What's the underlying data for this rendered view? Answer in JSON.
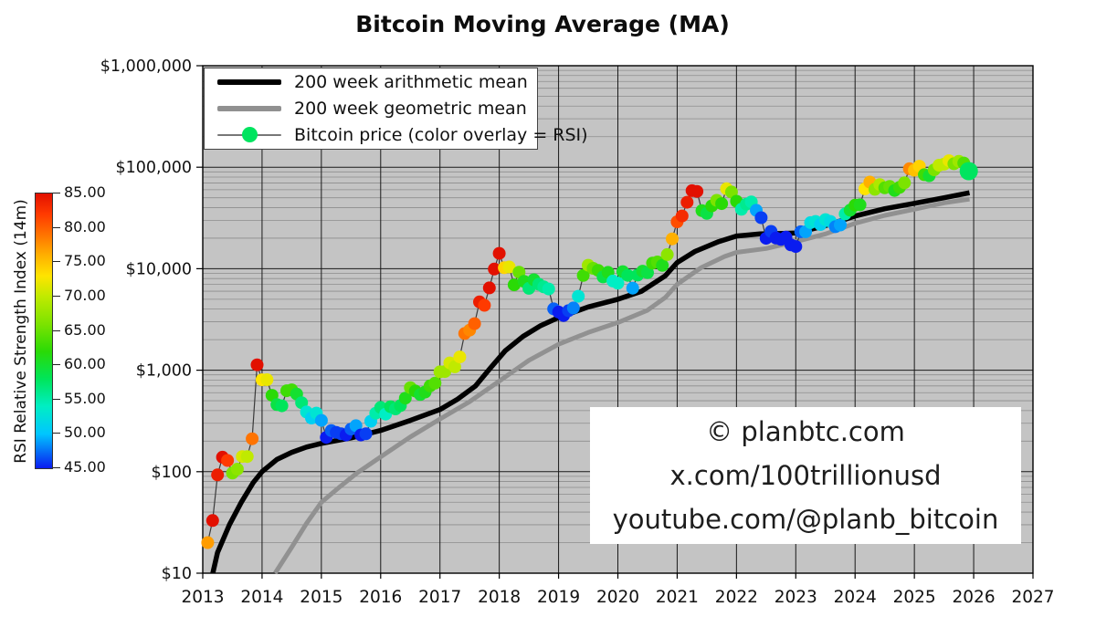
{
  "title": "Bitcoin Moving Average (MA)",
  "watermark": {
    "lines": [
      "© planbtc.com",
      "x.com/100trillionusd",
      "youtube.com/@planb_bitcoin"
    ]
  },
  "legend": {
    "items": [
      {
        "label": "200 week arithmetic mean",
        "type": "thick-line",
        "color": "#000000"
      },
      {
        "label": "200 week geometric mean",
        "type": "thick-line",
        "color": "#909090"
      },
      {
        "label": "Bitcoin price (color overlay = RSI)",
        "type": "marker",
        "color": "#00e45f"
      }
    ]
  },
  "colorbar": {
    "label": "RSI Relative Strength Index (14m)",
    "tick_labels": [
      "85.00",
      "80.00",
      "75.00",
      "70.00",
      "65.00",
      "60.00",
      "55.00",
      "50.00",
      "45.00"
    ],
    "min": 45,
    "max": 85,
    "stops": [
      [
        45,
        "#0a1cf0"
      ],
      [
        50,
        "#00c6ff"
      ],
      [
        54,
        "#00eec4"
      ],
      [
        58,
        "#00e55a"
      ],
      [
        62,
        "#2ada06"
      ],
      [
        66,
        "#7ce300"
      ],
      [
        70,
        "#c0ea00"
      ],
      [
        73,
        "#ffe400"
      ],
      [
        76,
        "#ffb000"
      ],
      [
        79,
        "#ff7300"
      ],
      [
        82,
        "#ff3a00"
      ],
      [
        85,
        "#e21000"
      ]
    ]
  },
  "colors": {
    "figure_bg": "#ffffff",
    "plot_bg": "#c4c4c4",
    "grid_minor": "#8d8d8d",
    "grid_major": "#1a1a1a",
    "frame": "#000000",
    "arith_line": "#000000",
    "geo_line": "#919191",
    "connector": "#3a3a3a",
    "tick_text": "#111111"
  },
  "chart_data": {
    "type": "line+scatter",
    "title": "Bitcoin Moving Average (MA)",
    "y_scale": "log",
    "x_range": [
      2013,
      2027
    ],
    "y_range": [
      10,
      1000000
    ],
    "grid": true,
    "legend_position": "upper-left",
    "x_tick_labels": [
      "2013",
      "2014",
      "2015",
      "2016",
      "2017",
      "2018",
      "2019",
      "2020",
      "2021",
      "2022",
      "2023",
      "2024",
      "2025",
      "2026",
      "2027"
    ],
    "y_ticks": [
      {
        "label": "$1,000,000",
        "value": 1000000
      },
      {
        "label": "$100,000",
        "value": 100000
      },
      {
        "label": "$10,000",
        "value": 10000
      },
      {
        "label": "$1,000",
        "value": 1000
      },
      {
        "label": "$100",
        "value": 100
      },
      {
        "label": "$10",
        "value": 10
      }
    ],
    "rsi_color_range": [
      45,
      85
    ],
    "series": [
      {
        "name": "200 week arithmetic mean",
        "style": "thick-line",
        "color": "#000000",
        "points": [
          [
            2013.17,
            10
          ],
          [
            2013.25,
            16
          ],
          [
            2013.45,
            30
          ],
          [
            2013.65,
            50
          ],
          [
            2013.85,
            78
          ],
          [
            2014.0,
            100
          ],
          [
            2014.25,
            132
          ],
          [
            2014.5,
            155
          ],
          [
            2014.75,
            175
          ],
          [
            2015.0,
            190
          ],
          [
            2015.5,
            215
          ],
          [
            2016.0,
            255
          ],
          [
            2016.5,
            320
          ],
          [
            2017.0,
            410
          ],
          [
            2017.3,
            520
          ],
          [
            2017.6,
            700
          ],
          [
            2017.85,
            1050
          ],
          [
            2018.1,
            1550
          ],
          [
            2018.4,
            2150
          ],
          [
            2018.7,
            2750
          ],
          [
            2019.0,
            3300
          ],
          [
            2019.5,
            4200
          ],
          [
            2020.0,
            5000
          ],
          [
            2020.4,
            6000
          ],
          [
            2020.8,
            8500
          ],
          [
            2021.0,
            11500
          ],
          [
            2021.3,
            14800
          ],
          [
            2021.7,
            18500
          ],
          [
            2022.0,
            21000
          ],
          [
            2022.4,
            22000
          ],
          [
            2022.8,
            22300
          ],
          [
            2023.0,
            22500
          ],
          [
            2023.5,
            26500
          ],
          [
            2024.0,
            33000
          ],
          [
            2024.5,
            39000
          ],
          [
            2025.0,
            44000
          ],
          [
            2025.5,
            50000
          ],
          [
            2025.93,
            56000
          ]
        ]
      },
      {
        "name": "200 week geometric mean",
        "style": "thick-line",
        "color": "#919191",
        "points": [
          [
            2014.22,
            10
          ],
          [
            2014.5,
            18
          ],
          [
            2014.75,
            31
          ],
          [
            2015.0,
            50
          ],
          [
            2015.3,
            70
          ],
          [
            2015.6,
            97
          ],
          [
            2016.0,
            140
          ],
          [
            2016.5,
            220
          ],
          [
            2017.0,
            330
          ],
          [
            2017.5,
            490
          ],
          [
            2018.0,
            780
          ],
          [
            2018.5,
            1250
          ],
          [
            2019.0,
            1800
          ],
          [
            2019.5,
            2350
          ],
          [
            2020.0,
            2950
          ],
          [
            2020.5,
            3900
          ],
          [
            2020.8,
            5200
          ],
          [
            2021.0,
            7000
          ],
          [
            2021.4,
            10200
          ],
          [
            2021.8,
            13200
          ],
          [
            2022.0,
            14500
          ],
          [
            2022.5,
            15800
          ],
          [
            2023.0,
            18500
          ],
          [
            2023.5,
            22000
          ],
          [
            2024.0,
            28000
          ],
          [
            2024.5,
            33500
          ],
          [
            2025.0,
            38500
          ],
          [
            2025.5,
            44500
          ],
          [
            2025.93,
            48500
          ]
        ]
      },
      {
        "name": "Bitcoin price (color overlay = RSI)",
        "style": "scatter-rsi",
        "note": "monthly close, dot color = 14-month RSI",
        "last_point_highlight": true,
        "monthly": [
          [
            "2013-01",
            20,
            77
          ],
          [
            "2013-02",
            33,
            85
          ],
          [
            "2013-03",
            93,
            84
          ],
          [
            "2013-04",
            139,
            85
          ],
          [
            "2013-05",
            129,
            82
          ],
          [
            "2013-06",
            97,
            66
          ],
          [
            "2013-07",
            106,
            67
          ],
          [
            "2013-08",
            141,
            71
          ],
          [
            "2013-09",
            141,
            70
          ],
          [
            "2013-10",
            211,
            79
          ],
          [
            "2013-11",
            1130,
            87
          ],
          [
            "2013-12",
            805,
            73
          ],
          [
            "2014-01",
            806,
            72
          ],
          [
            "2014-02",
            566,
            62
          ],
          [
            "2014-03",
            458,
            59
          ],
          [
            "2014-04",
            446,
            58
          ],
          [
            "2014-05",
            628,
            63
          ],
          [
            "2014-06",
            641,
            63
          ],
          [
            "2014-07",
            583,
            60
          ],
          [
            "2014-08",
            478,
            57
          ],
          [
            "2014-09",
            387,
            53
          ],
          [
            "2014-10",
            338,
            51
          ],
          [
            "2014-11",
            378,
            53
          ],
          [
            "2014-12",
            320,
            49
          ],
          [
            "2015-01",
            218,
            45
          ],
          [
            "2015-02",
            254,
            47
          ],
          [
            "2015-03",
            244,
            46
          ],
          [
            "2015-04",
            236,
            46
          ],
          [
            "2015-05",
            230,
            45
          ],
          [
            "2015-06",
            263,
            47
          ],
          [
            "2015-07",
            284,
            49
          ],
          [
            "2015-08",
            230,
            45
          ],
          [
            "2015-09",
            236,
            46
          ],
          [
            "2015-10",
            314,
            51
          ],
          [
            "2015-11",
            377,
            55
          ],
          [
            "2015-12",
            430,
            57
          ],
          [
            "2016-01",
            369,
            54
          ],
          [
            "2016-02",
            437,
            58
          ],
          [
            "2016-03",
            416,
            57
          ],
          [
            "2016-04",
            448,
            58
          ],
          [
            "2016-05",
            531,
            61
          ],
          [
            "2016-06",
            673,
            65
          ],
          [
            "2016-07",
            624,
            62
          ],
          [
            "2016-08",
            575,
            60
          ],
          [
            "2016-09",
            610,
            61
          ],
          [
            "2016-10",
            700,
            63
          ],
          [
            "2016-11",
            745,
            64
          ],
          [
            "2016-12",
            964,
            68
          ],
          [
            "2017-01",
            970,
            68
          ],
          [
            "2017-02",
            1180,
            71
          ],
          [
            "2017-03",
            1080,
            70
          ],
          [
            "2017-04",
            1350,
            72
          ],
          [
            "2017-05",
            2300,
            79
          ],
          [
            "2017-06",
            2480,
            78
          ],
          [
            "2017-07",
            2875,
            80
          ],
          [
            "2017-08",
            4703,
            84
          ],
          [
            "2017-09",
            4360,
            82
          ],
          [
            "2017-10",
            6468,
            85
          ],
          [
            "2017-11",
            9916,
            86
          ],
          [
            "2017-12",
            14156,
            88
          ],
          [
            "2018-01",
            10221,
            74
          ],
          [
            "2018-02",
            10397,
            72
          ],
          [
            "2018-03",
            6938,
            62
          ],
          [
            "2018-04",
            9240,
            65
          ],
          [
            "2018-05",
            7494,
            61
          ],
          [
            "2018-06",
            6404,
            57
          ],
          [
            "2018-07",
            7780,
            60
          ],
          [
            "2018-08",
            7037,
            57
          ],
          [
            "2018-09",
            6625,
            56
          ],
          [
            "2018-10",
            6317,
            55
          ],
          [
            "2018-11",
            4017,
            47
          ],
          [
            "2018-12",
            3742,
            45
          ],
          [
            "2019-01",
            3457,
            44
          ],
          [
            "2019-02",
            3854,
            46
          ],
          [
            "2019-03",
            4105,
            48
          ],
          [
            "2019-04",
            5350,
            53
          ],
          [
            "2019-05",
            8574,
            63
          ],
          [
            "2019-06",
            10817,
            68
          ],
          [
            "2019-07",
            10085,
            65
          ],
          [
            "2019-08",
            9630,
            63
          ],
          [
            "2019-09",
            8308,
            59
          ],
          [
            "2019-10",
            9199,
            61
          ],
          [
            "2019-11",
            7569,
            54
          ],
          [
            "2019-12",
            7193,
            54
          ],
          [
            "2020-01",
            9350,
            60
          ],
          [
            "2020-02",
            8599,
            58
          ],
          [
            "2020-03",
            6438,
            49
          ],
          [
            "2020-04",
            8658,
            58
          ],
          [
            "2020-05",
            9461,
            60
          ],
          [
            "2020-06",
            9137,
            59
          ],
          [
            "2020-07",
            11351,
            63
          ],
          [
            "2020-08",
            11655,
            64
          ],
          [
            "2020-09",
            10776,
            61
          ],
          [
            "2020-10",
            13797,
            67
          ],
          [
            "2020-11",
            19698,
            76
          ],
          [
            "2020-12",
            28994,
            81
          ],
          [
            "2021-01",
            33114,
            83
          ],
          [
            "2021-02",
            45137,
            84
          ],
          [
            "2021-03",
            58763,
            86
          ],
          [
            "2021-04",
            57750,
            85
          ],
          [
            "2021-05",
            37332,
            61
          ],
          [
            "2021-06",
            35041,
            59
          ],
          [
            "2021-07",
            41553,
            62
          ],
          [
            "2021-08",
            47130,
            66
          ],
          [
            "2021-09",
            43790,
            62
          ],
          [
            "2021-10",
            61310,
            72
          ],
          [
            "2021-11",
            56907,
            66
          ],
          [
            "2021-12",
            46211,
            62
          ],
          [
            "2022-01",
            38483,
            55
          ],
          [
            "2022-02",
            43193,
            56
          ],
          [
            "2022-03",
            45528,
            55
          ],
          [
            "2022-04",
            37630,
            49
          ],
          [
            "2022-05",
            31792,
            46
          ],
          [
            "2022-06",
            19942,
            43
          ],
          [
            "2022-07",
            23336,
            46
          ],
          [
            "2022-08",
            20050,
            44
          ],
          [
            "2022-09",
            19426,
            44
          ],
          [
            "2022-10",
            20490,
            45
          ],
          [
            "2022-11",
            17168,
            42
          ],
          [
            "2022-12",
            16548,
            42
          ],
          [
            "2023-01",
            23130,
            47
          ],
          [
            "2023-02",
            23139,
            49
          ],
          [
            "2023-03",
            28474,
            52
          ],
          [
            "2023-04",
            29252,
            53
          ],
          [
            "2023-05",
            27219,
            51
          ],
          [
            "2023-06",
            30472,
            53
          ],
          [
            "2023-07",
            29232,
            52
          ],
          [
            "2023-08",
            25932,
            48
          ],
          [
            "2023-09",
            26962,
            49
          ],
          [
            "2023-10",
            34656,
            55
          ],
          [
            "2023-11",
            37718,
            60
          ],
          [
            "2023-12",
            42265,
            62
          ],
          [
            "2024-01",
            42569,
            61
          ],
          [
            "2024-02",
            61198,
            73
          ],
          [
            "2024-03",
            71333,
            76
          ],
          [
            "2024-04",
            60637,
            67
          ],
          [
            "2024-05",
            67491,
            69
          ],
          [
            "2024-06",
            62678,
            64
          ],
          [
            "2024-07",
            64619,
            65
          ],
          [
            "2024-08",
            58969,
            61
          ],
          [
            "2024-09",
            63329,
            63
          ],
          [
            "2024-10",
            70215,
            66
          ],
          [
            "2024-11",
            96449,
            78
          ],
          [
            "2024-12",
            93429,
            75
          ],
          [
            "2025-01",
            102405,
            74
          ],
          [
            "2025-02",
            84349,
            63
          ],
          [
            "2025-03",
            82548,
            60
          ],
          [
            "2025-04",
            94207,
            66
          ],
          [
            "2025-05",
            104598,
            70
          ],
          [
            "2025-06",
            107135,
            70
          ],
          [
            "2025-07",
            115758,
            72
          ],
          [
            "2025-08",
            108236,
            66
          ],
          [
            "2025-09",
            114056,
            68
          ],
          [
            "2025-10",
            110100,
            64
          ],
          [
            "2025-11",
            91500,
            58
          ]
        ]
      }
    ]
  }
}
